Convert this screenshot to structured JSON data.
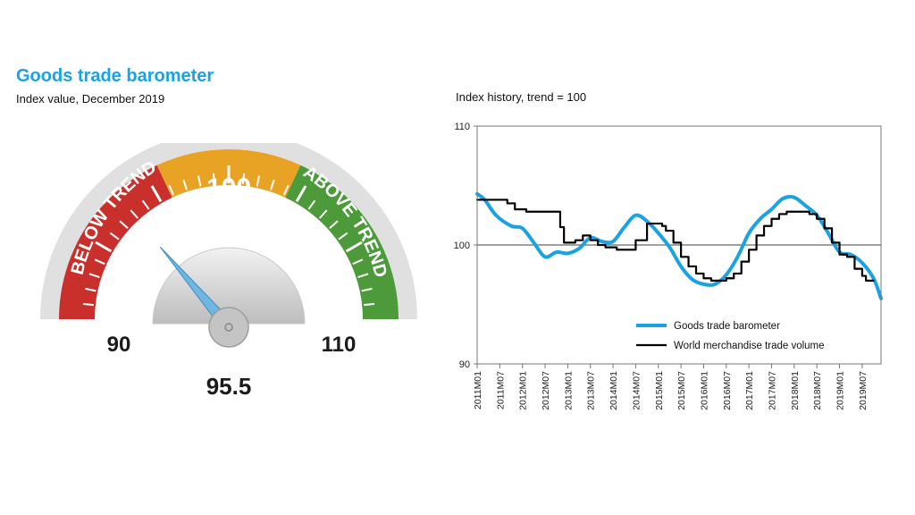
{
  "header": {
    "title": "Goods trade barometer",
    "subtitle": "Index value, December 2019",
    "history_title": "Index history, trend = 100"
  },
  "gauge": {
    "value": 95.5,
    "value_label": "95.5",
    "min": 90,
    "max": 110,
    "min_label": "90",
    "max_label": "110",
    "center_label": "100",
    "below_label": "BELOW TREND",
    "above_label": "ABOVE TREND",
    "colors": {
      "below": "#c9302c",
      "center": "#e8a325",
      "above": "#4d9a3a",
      "needle": "#6fb6e0",
      "rim": "#d9d9d9"
    }
  },
  "chart_data": {
    "type": "line",
    "title": "Index history, trend = 100",
    "ylim": [
      90,
      110
    ],
    "yticks": [
      90,
      100,
      110
    ],
    "reference_line": 100,
    "x_tick_labels": [
      "2011M01",
      "2011M07",
      "2012M01",
      "2012M07",
      "2013M01",
      "2013M07",
      "2014M01",
      "2014M07",
      "2015M01",
      "2015M07",
      "2016M01",
      "2016M07",
      "2017M01",
      "2017M07",
      "2018M01",
      "2018M07",
      "2019M01",
      "2019M07"
    ],
    "x_range": [
      "2011M01",
      "2019M12"
    ],
    "legend_position": "bottom-right",
    "series": [
      {
        "name": "Goods trade barometer",
        "color": "#1aa3e3",
        "x": [
          "2011M01",
          "2011M03",
          "2011M06",
          "2011M10",
          "2012M01",
          "2012M04",
          "2012M07",
          "2012M10",
          "2013M01",
          "2013M04",
          "2013M07",
          "2013M10",
          "2014M01",
          "2014M04",
          "2014M07",
          "2014M10",
          "2015M01",
          "2015M04",
          "2015M07",
          "2015M10",
          "2016M01",
          "2016M04",
          "2016M07",
          "2016M10",
          "2017M01",
          "2017M04",
          "2017M07",
          "2017M10",
          "2018M01",
          "2018M04",
          "2018M07",
          "2018M10",
          "2019M01",
          "2019M04",
          "2019M07",
          "2019M10",
          "2019M12"
        ],
        "values": [
          104.3,
          103.8,
          102.5,
          101.6,
          101.4,
          100.2,
          99.0,
          99.4,
          99.3,
          99.7,
          100.6,
          100.3,
          100.3,
          101.5,
          102.5,
          102.0,
          101.0,
          99.8,
          98.2,
          97.1,
          96.7,
          96.7,
          97.5,
          99.0,
          101.0,
          102.2,
          103.0,
          103.9,
          104.0,
          103.3,
          102.5,
          101.0,
          99.4,
          99.2,
          98.5,
          97.2,
          95.5
        ]
      },
      {
        "name": "World merchandise trade volume",
        "color": "#000000",
        "x": [
          "2011M01",
          "2011M07",
          "2011M09",
          "2011M11",
          "2012M02",
          "2012M07",
          "2012M11",
          "2012M12",
          "2013M03",
          "2013M05",
          "2013M07",
          "2013M09",
          "2013M11",
          "2014M02",
          "2014M06",
          "2014M07",
          "2014M10",
          "2014M12",
          "2015M02",
          "2015M03",
          "2015M05",
          "2015M07",
          "2015M09",
          "2015M11",
          "2016M01",
          "2016M03",
          "2016M05",
          "2016M07",
          "2016M09",
          "2016M11",
          "2017M01",
          "2017M03",
          "2017M05",
          "2017M07",
          "2017M09",
          "2017M11",
          "2018M01",
          "2018M03",
          "2018M05",
          "2018M07",
          "2018M09",
          "2018M11",
          "2019M01",
          "2019M03",
          "2019M05",
          "2019M07",
          "2019M08",
          "2019M10"
        ],
        "values": [
          103.8,
          103.8,
          103.5,
          103.0,
          102.8,
          102.8,
          101.5,
          100.2,
          100.4,
          100.8,
          100.4,
          100.0,
          99.8,
          99.6,
          99.6,
          100.4,
          101.8,
          101.8,
          101.6,
          101.2,
          100.2,
          99.0,
          98.2,
          97.6,
          97.2,
          97.0,
          97.0,
          97.2,
          97.6,
          98.6,
          99.6,
          100.8,
          101.6,
          102.2,
          102.6,
          102.8,
          102.8,
          102.8,
          102.6,
          102.2,
          101.4,
          100.2,
          99.2,
          99.0,
          98.0,
          97.4,
          97.0,
          97.0
        ]
      }
    ]
  }
}
